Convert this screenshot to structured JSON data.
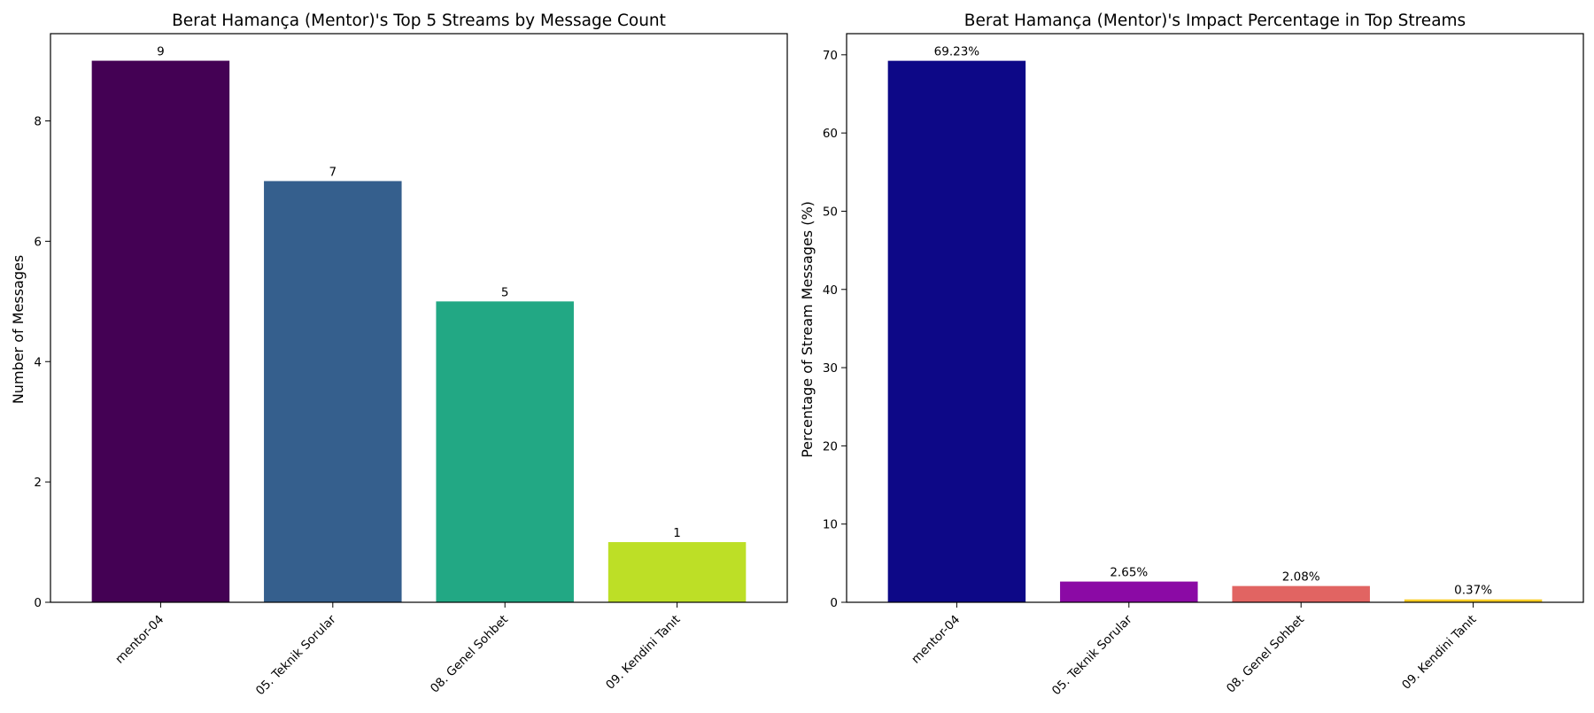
{
  "chart_data": [
    {
      "type": "bar",
      "title": "Berat Hamança (Mentor)'s Top 5 Streams by Message Count",
      "xlabel": "",
      "ylabel": "Number of Messages",
      "categories": [
        "mentor-04",
        "05. Teknik Sorular",
        "08. Genel Sohbet",
        "09. Kendini Tanıt"
      ],
      "values": [
        9,
        7,
        5,
        1
      ],
      "value_labels": [
        "9",
        "7",
        "5",
        "1"
      ],
      "colors": [
        "#440154",
        "#355f8d",
        "#22a884",
        "#bddf26"
      ],
      "ylim": [
        0,
        9.45
      ],
      "yticks": [
        0,
        2,
        4,
        6,
        8
      ],
      "grid": false,
      "legend": "none"
    },
    {
      "type": "bar",
      "title": "Berat Hamança (Mentor)'s Impact Percentage in Top Streams",
      "xlabel": "",
      "ylabel": "Percentage of Stream Messages (%)",
      "categories": [
        "mentor-04",
        "05. Teknik Sorular",
        "08. Genel Sohbet",
        "09. Kendini Tanıt"
      ],
      "values": [
        69.23,
        2.65,
        2.08,
        0.37
      ],
      "value_labels": [
        "69.23%",
        "2.65%",
        "2.08%",
        "0.37%"
      ],
      "colors": [
        "#0d0887",
        "#8b0aa5",
        "#e16462",
        "#fccd25"
      ],
      "ylim": [
        0,
        72.7
      ],
      "yticks": [
        0,
        10,
        20,
        30,
        40,
        50,
        60,
        70
      ],
      "grid": false,
      "legend": "none"
    }
  ]
}
